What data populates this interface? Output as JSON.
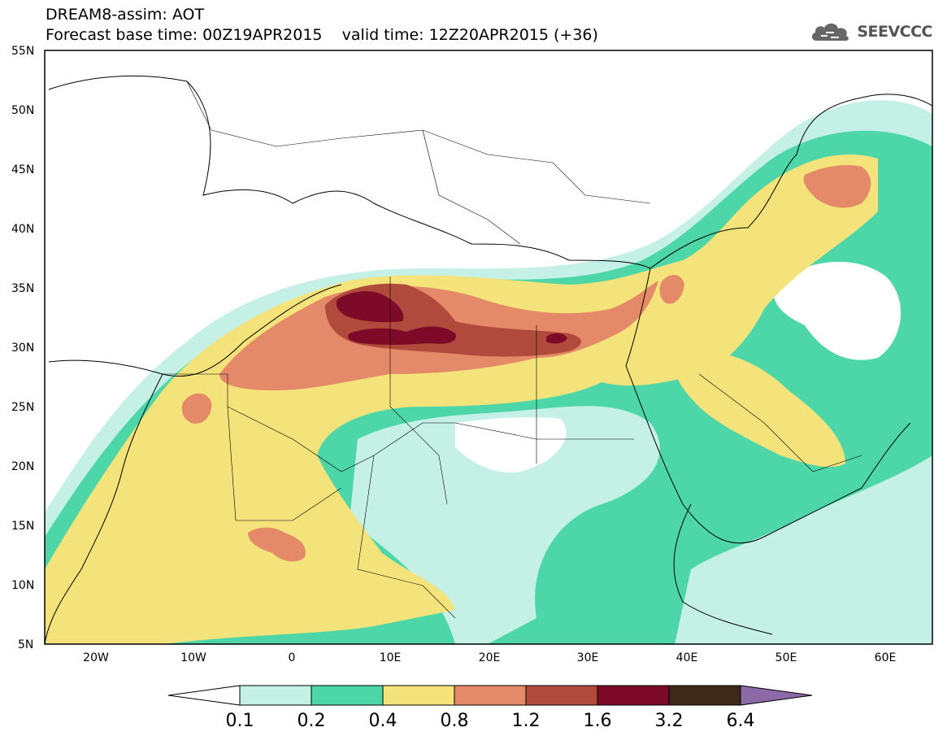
{
  "title": {
    "line1": "DREAM8-assim: AOT",
    "line2": "Forecast base time: 00Z19APR2015    valid time: 12Z20APR2015 (+36)"
  },
  "logo": {
    "text": "SEEVCCC",
    "icon": "cloud-icon"
  },
  "map": {
    "lon_range": [
      -25,
      65
    ],
    "lat_range": [
      5,
      55
    ],
    "lat_ticks": [
      "55N",
      "50N",
      "45N",
      "40N",
      "35N",
      "30N",
      "25N",
      "20N",
      "15N",
      "10N",
      "5N"
    ],
    "lon_ticks": [
      "20W",
      "10W",
      "0",
      "10E",
      "20E",
      "30E",
      "40E",
      "50E",
      "60E"
    ]
  },
  "colorbar": {
    "labels": [
      "0.1",
      "0.2",
      "0.4",
      "0.8",
      "1.2",
      "1.6",
      "3.2",
      "6.4"
    ],
    "colors": [
      "#ffffff",
      "#c4f0e6",
      "#4dd7a8",
      "#f4e27a",
      "#e48a68",
      "#b04a3c",
      "#7d0a26",
      "#3e2818",
      "#8c6aa8"
    ]
  },
  "chart_data": {
    "type": "heatmap",
    "variable": "AOT",
    "levels": [
      0.1,
      0.2,
      0.4,
      0.8,
      1.2,
      1.6,
      3.2,
      6.4
    ],
    "x_range": [
      "25W",
      "65E"
    ],
    "y_range": [
      "5N",
      "55N"
    ]
  }
}
